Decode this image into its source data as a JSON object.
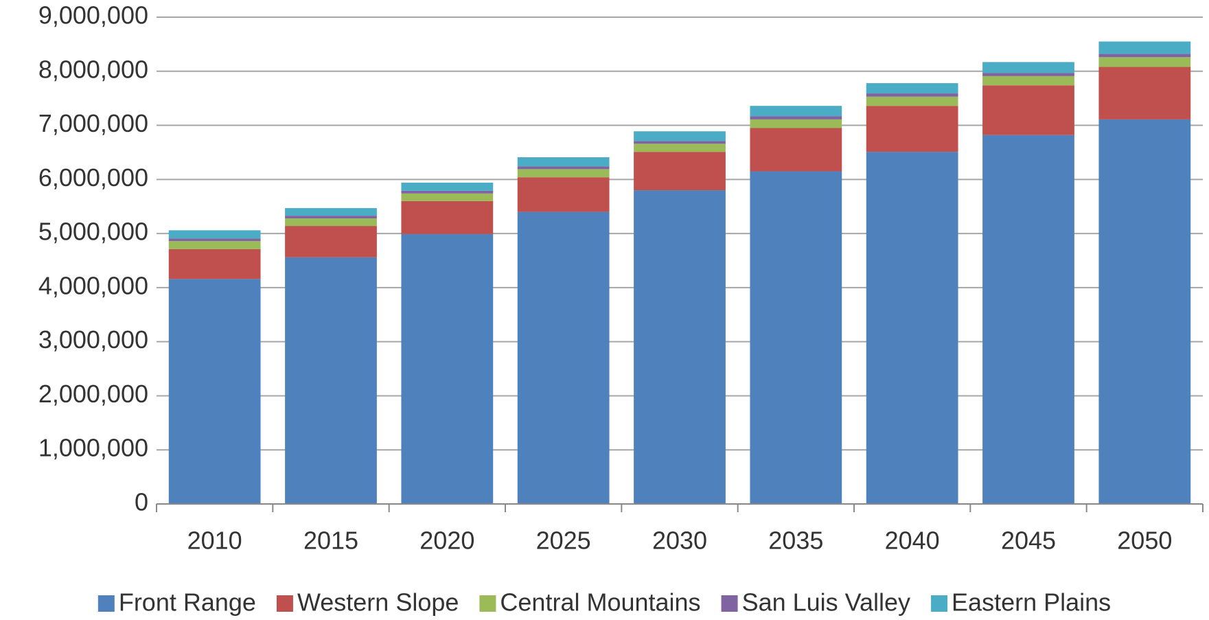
{
  "chart_data": {
    "type": "stacked_bar",
    "categories": [
      "2010",
      "2015",
      "2020",
      "2025",
      "2030",
      "2035",
      "2040",
      "2045",
      "2050"
    ],
    "series": [
      {
        "name": "Front Range",
        "color": "#4f81bd",
        "values": [
          4160000,
          4560000,
          4990000,
          5400000,
          5800000,
          6150000,
          6510000,
          6820000,
          7110000
        ]
      },
      {
        "name": "Western Slope",
        "color": "#c0504d",
        "values": [
          550000,
          580000,
          610000,
          640000,
          710000,
          800000,
          850000,
          920000,
          970000
        ]
      },
      {
        "name": "Central Mountains",
        "color": "#9bbb59",
        "values": [
          150000,
          140000,
          140000,
          150000,
          150000,
          160000,
          170000,
          170000,
          180000
        ]
      },
      {
        "name": "San Luis Valley",
        "color": "#8064a2",
        "values": [
          50000,
          50000,
          50000,
          50000,
          50000,
          60000,
          60000,
          60000,
          60000
        ]
      },
      {
        "name": "Eastern Plains",
        "color": "#4bacc6",
        "values": [
          150000,
          140000,
          150000,
          170000,
          180000,
          190000,
          190000,
          200000,
          230000
        ]
      }
    ],
    "ylim": [
      0,
      9000000
    ],
    "yticks": [
      0,
      {
        "value": 1000000,
        "label": "1,000,000"
      },
      {
        "value": 2000000,
        "label": "2,000,000"
      },
      {
        "value": 3000000,
        "label": "3,000,000"
      },
      {
        "value": 4000000,
        "label": "4,000,000"
      },
      {
        "value": 5000000,
        "label": "5,000,000"
      },
      {
        "value": 6000000,
        "label": "6,000,000"
      },
      {
        "value": 7000000,
        "label": "7,000,000"
      },
      {
        "value": 8000000,
        "label": "8,000,000"
      },
      {
        "value": 9000000,
        "label": "9,000,000"
      }
    ],
    "grid": true,
    "legend": "bottom"
  }
}
